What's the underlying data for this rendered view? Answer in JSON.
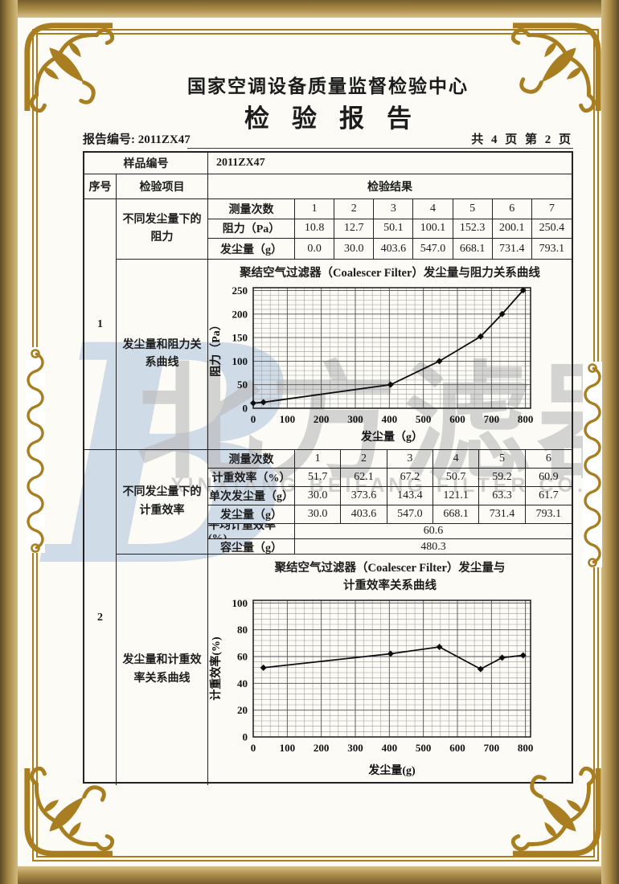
{
  "header": {
    "org_title": "国家空调设备质量监督检验中心",
    "doc_title": "检验报告",
    "report_no_label": "报告编号:",
    "report_no_value": "2011ZX47",
    "page_info": "共 4 页 第 2 页"
  },
  "table": {
    "sample_label": "样品编号",
    "sample_value": "2011ZX47",
    "col_seq": "序号",
    "col_item": "检验项目",
    "col_result": "检验结果",
    "row1": {
      "seq": "1",
      "item_top": "不同发尘量下的阻力",
      "item_bottom": "发尘量和阻力关系曲线",
      "sub_table": {
        "corner_label": "测量次数",
        "columns": [
          "1",
          "2",
          "3",
          "4",
          "5",
          "6",
          "7"
        ],
        "rows": [
          {
            "label": "阻力（Pa）",
            "values": [
              "10.8",
              "12.7",
              "50.1",
              "100.1",
              "152.3",
              "200.1",
              "250.4"
            ]
          },
          {
            "label": "发尘量（g）",
            "values": [
              "0.0",
              "30.0",
              "403.6",
              "547.0",
              "668.1",
              "731.4",
              "793.1"
            ]
          }
        ],
        "merged_rows": []
      }
    },
    "row2": {
      "seq": "2",
      "item_top": "不同发尘量下的计重效率",
      "item_bottom": "发尘量和计重效率关系曲线",
      "sub_table": {
        "corner_label": "测量次数",
        "columns": [
          "1",
          "2",
          "3",
          "4",
          "5",
          "6"
        ],
        "rows": [
          {
            "label": "计重效率（%）",
            "values": [
              "51.7",
              "62.1",
              "67.2",
              "50.7",
              "59.2",
              "60.9"
            ]
          },
          {
            "label": "单次发尘量（g）",
            "values": [
              "30.0",
              "373.6",
              "143.4",
              "121.1",
              "63.3",
              "61.7"
            ]
          },
          {
            "label": "发尘量（g）",
            "values": [
              "30.0",
              "403.6",
              "547.0",
              "668.1",
              "731.4",
              "793.1"
            ]
          }
        ],
        "merged_rows": [
          {
            "label": "平均计重效率(%)",
            "value": "60.6"
          },
          {
            "label": "容尘量（g）",
            "value": "480.3"
          }
        ]
      }
    }
  },
  "watermark": {
    "logo_letter": "B",
    "cn_text": "北方滤器",
    "en_text": "XINXIANG BEIFANG FILTER CO., LTD."
  },
  "colors": {
    "frame_gold": "#a87e20",
    "watermark_blue": "#b6c8e0",
    "watermark_gray": "#b9b9b9",
    "ink": "#1c1c1c"
  },
  "chart_data": [
    {
      "type": "line",
      "title_lines": [
        "聚结空气过滤器（Coalescer Filter）发尘量与阻力关系曲线"
      ],
      "xlabel": "发尘量（g）",
      "ylabel": "阻力（Pa）",
      "x": [
        0,
        30.0,
        403.6,
        547.0,
        668.1,
        731.4,
        793.1
      ],
      "y": [
        10.8,
        12.7,
        50.1,
        100.1,
        152.3,
        200.1,
        250.4
      ],
      "xlim": [
        0,
        815
      ],
      "ylim": [
        0,
        256
      ],
      "xticks": [
        0,
        100,
        200,
        300,
        400,
        500,
        600,
        700,
        800
      ],
      "yticks": [
        0,
        50,
        100,
        150,
        200,
        250
      ],
      "grid": "fine",
      "legend": "none"
    },
    {
      "type": "line",
      "title_lines": [
        "聚结空气过滤器（Coalescer Filter）发尘量与",
        "计重效率关系曲线"
      ],
      "xlabel": "发尘量(g)",
      "ylabel": "计重效率(%)",
      "x": [
        30.0,
        403.6,
        547.0,
        668.1,
        731.4,
        793.1
      ],
      "y": [
        51.7,
        62.1,
        67.2,
        50.7,
        59.2,
        60.9
      ],
      "xlim": [
        0,
        815
      ],
      "ylim": [
        0,
        102
      ],
      "xticks": [
        0,
        100,
        200,
        300,
        400,
        500,
        600,
        700,
        800
      ],
      "yticks": [
        0,
        20,
        40,
        60,
        80,
        100
      ],
      "grid": "fine",
      "legend": "none"
    }
  ]
}
